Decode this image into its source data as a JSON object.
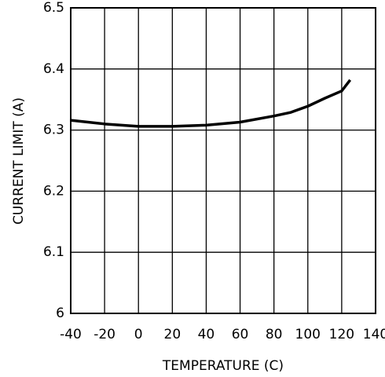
{
  "chart_data": {
    "type": "line",
    "x_label": "TEMPERATURE (C)",
    "y_label": "CURRENT LIMIT (A)",
    "x": [
      -40,
      -20,
      0,
      20,
      40,
      60,
      80,
      90,
      100,
      110,
      120,
      125
    ],
    "series": [
      {
        "color": "#000000",
        "values": [
          6.316,
          6.31,
          6.306,
          6.306,
          6.308,
          6.313,
          6.323,
          6.329,
          6.339,
          6.352,
          6.364,
          6.382
        ]
      }
    ],
    "xlim": [
      -40,
      140
    ],
    "xticks": [
      -40,
      -20,
      0,
      20,
      40,
      60,
      80,
      100,
      120,
      140
    ],
    "ylim": [
      6,
      6.5
    ],
    "yticks": [
      6,
      6.1,
      6.2,
      6.3,
      6.4,
      6.5
    ],
    "grid": true
  }
}
